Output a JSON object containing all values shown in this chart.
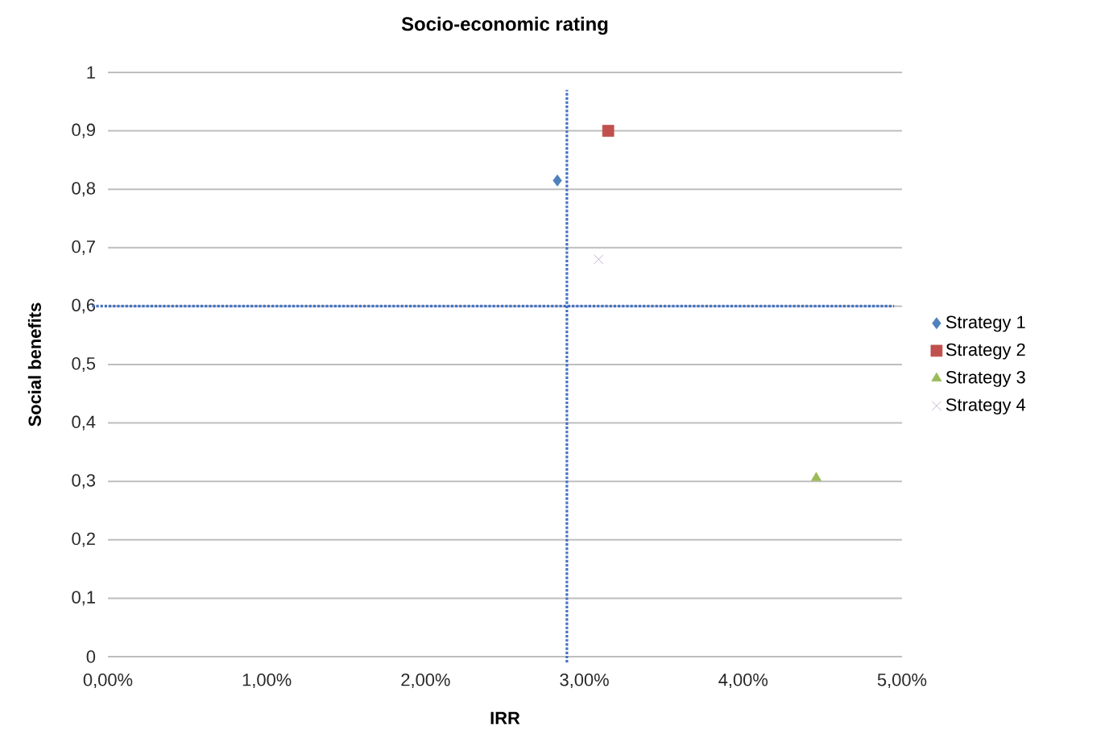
{
  "chart_data": {
    "type": "scatter",
    "title": "Socio-economic rating",
    "xlabel": "IRR",
    "ylabel": "Social benefits",
    "series": [
      {
        "name": "Strategy 1",
        "color": "#4f81bd",
        "marker": "diamond",
        "x": [
          2.83
        ],
        "values": [
          0.815
        ]
      },
      {
        "name": "Strategy 2",
        "color": "#c0504d",
        "marker": "square",
        "x": [
          3.15
        ],
        "values": [
          0.9
        ]
      },
      {
        "name": "Strategy 3",
        "color": "#9bbb59",
        "marker": "triangle",
        "x": [
          4.46
        ],
        "values": [
          0.306
        ]
      },
      {
        "name": "Strategy 4",
        "color": "#b3a2c7",
        "marker": "cross",
        "x": [
          3.09
        ],
        "values": [
          0.68
        ]
      }
    ],
    "xlim": [
      0,
      5
    ],
    "xticks": [
      {
        "value": 0,
        "label": "0,00%"
      },
      {
        "value": 1,
        "label": "1,00%"
      },
      {
        "value": 2,
        "label": "2,00%"
      },
      {
        "value": 3,
        "label": "3,00%"
      },
      {
        "value": 4,
        "label": "4,00%"
      },
      {
        "value": 5,
        "label": "5,00%"
      }
    ],
    "ylim": [
      0,
      1
    ],
    "yticks": [
      0,
      {
        "value": 0.1,
        "label": "0,1"
      },
      {
        "value": 0.2,
        "label": "0,2"
      },
      {
        "value": 0.3,
        "label": "0,3"
      },
      {
        "value": 0.4,
        "label": "0,4"
      },
      {
        "value": 0.5,
        "label": "0,5"
      },
      {
        "value": 0.6,
        "label": "0,6"
      },
      {
        "value": 0.7,
        "label": "0,7"
      },
      {
        "value": 0.8,
        "label": "0,8"
      },
      {
        "value": 0.9,
        "label": "0,9"
      },
      1
    ],
    "ref_lines": [
      {
        "axis": "x",
        "value": 2.89,
        "color": "#4472c4",
        "line_style": "dotted"
      },
      {
        "axis": "y",
        "value": 0.6,
        "color": "#4472c4",
        "line_style": "dotted"
      }
    ],
    "grid": "y",
    "legend": "right"
  }
}
